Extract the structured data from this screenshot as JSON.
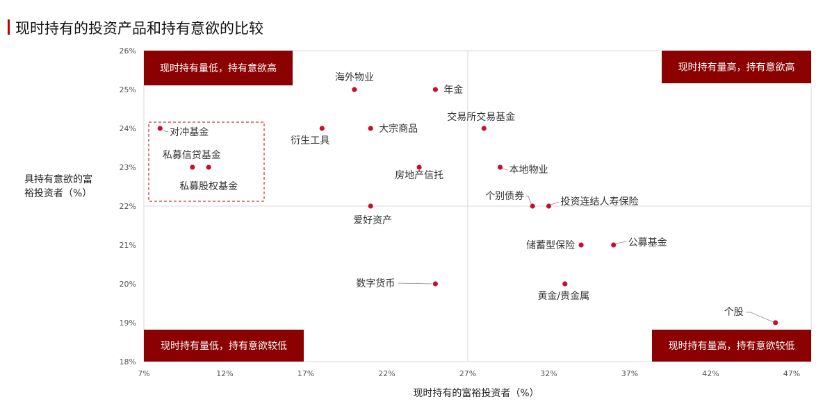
{
  "title": "现时持有的投资产品和持有意欲的比较",
  "colors": {
    "accent": "#c00000",
    "quadrant_bg": "#8b0000",
    "point": "#c8102e"
  },
  "chart_data": {
    "type": "scatter",
    "xlabel": "现时持有的富裕投资者（%）",
    "ylabel_lines": [
      "具持有意欲的富",
      "裕投资者（%）"
    ],
    "xlim": [
      7,
      48
    ],
    "ylim": [
      18,
      26
    ],
    "x_ticks": [
      7,
      12,
      17,
      22,
      27,
      32,
      37,
      42,
      47
    ],
    "x_tick_labels": [
      "7%",
      "12%",
      "17%",
      "22%",
      "27%",
      "32%",
      "37%",
      "42%",
      "47%"
    ],
    "y_ticks": [
      18,
      19,
      20,
      21,
      22,
      23,
      24,
      25,
      26
    ],
    "y_tick_labels": [
      "18%",
      "19%",
      "20%",
      "21%",
      "22%",
      "23%",
      "24%",
      "25%",
      "26%"
    ],
    "divider_x": 27,
    "divider_y": 22,
    "grid": false,
    "quadrants": {
      "top_left": "现时持有量低，持有意欲高",
      "top_right": "现时持有量高，持有意欲高",
      "bottom_left": "现时持有量低，持有意欲较低",
      "bottom_right": "现时持有量高，持有意欲较低"
    },
    "points": [
      {
        "label": "海外物业",
        "x": 20,
        "y": 25
      },
      {
        "label": "年金",
        "x": 25,
        "y": 25
      },
      {
        "label": "对冲基金",
        "x": 8,
        "y": 24
      },
      {
        "label": "衍生工具",
        "x": 18,
        "y": 24
      },
      {
        "label": "大宗商品",
        "x": 21,
        "y": 24
      },
      {
        "label": "交易所交易基金",
        "x": 28,
        "y": 24
      },
      {
        "label": "私募信贷基金",
        "x": 10,
        "y": 23
      },
      {
        "label": "私募股权基金",
        "x": 11,
        "y": 23
      },
      {
        "label": "房地产信托",
        "x": 24,
        "y": 23
      },
      {
        "label": "本地物业",
        "x": 29,
        "y": 23
      },
      {
        "label": "个别债券",
        "x": 31,
        "y": 22
      },
      {
        "label": "投资连结人寿保险",
        "x": 32,
        "y": 22
      },
      {
        "label": "爱好资产",
        "x": 21,
        "y": 22
      },
      {
        "label": "储蓄型保险",
        "x": 34,
        "y": 21
      },
      {
        "label": "公募基金",
        "x": 36,
        "y": 21
      },
      {
        "label": "数字货币",
        "x": 25,
        "y": 20
      },
      {
        "label": "黄金/贵金属",
        "x": 33,
        "y": 20
      },
      {
        "label": "个股",
        "x": 46,
        "y": 19
      }
    ]
  }
}
